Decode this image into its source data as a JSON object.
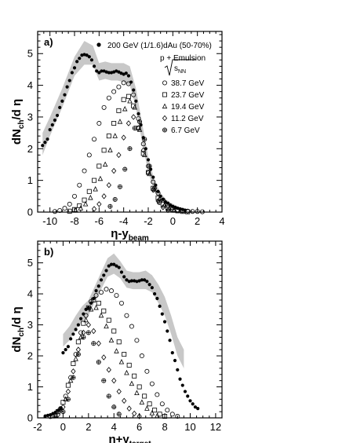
{
  "chart_data": [
    {
      "type": "scatter",
      "panel_label": "a)",
      "ylabel": "dN",
      "ylabel_sub": "ch",
      "ylabel_tail": "/d η",
      "xlabel": "η-y",
      "xlabel_sub": "beam",
      "xlim": [
        -11,
        4
      ],
      "ylim": [
        0,
        5.7
      ],
      "x_ticks": [
        "-10",
        "-8",
        "-6",
        "-4",
        "-2",
        "0",
        "2",
        "4"
      ],
      "y_ticks": [
        "0",
        "1",
        "2",
        "3",
        "4",
        "5"
      ],
      "legend": {
        "dau_label": "200 GeV (1/1.6)dAu (50-70%)",
        "emulsion_label": "p + Emulsion",
        "sqrt_label": "s",
        "sqrt_sub": "NN",
        "entries": [
          {
            "label": "38.7 GeV",
            "marker": "circle"
          },
          {
            "label": "23.7 GeV",
            "marker": "square"
          },
          {
            "label": "19.4 GeV",
            "marker": "triangle"
          },
          {
            "label": "11.2 GeV",
            "marker": "diamond"
          },
          {
            "label": "6.7 GeV",
            "marker": "cross-circle"
          }
        ]
      },
      "band": {
        "x": [
          -10.6,
          -10.0,
          -9.0,
          -8.0,
          -7.2,
          -6.5,
          -6.0,
          -5.5,
          -5.0,
          -4.5,
          -4.0,
          -3.5,
          -3.0,
          -2.5,
          -2.0,
          -1.5,
          -1.0,
          -0.5,
          0.0,
          0.5,
          1.0
        ],
        "lower": [
          1.8,
          2.4,
          3.3,
          4.3,
          4.65,
          4.65,
          4.15,
          4.2,
          4.15,
          4.15,
          4.1,
          4.0,
          3.3,
          2.2,
          1.25,
          0.65,
          0.35,
          0.22,
          0.14,
          0.09,
          0.06
        ],
        "upper": [
          2.5,
          3.0,
          3.9,
          4.9,
          5.4,
          5.25,
          4.7,
          4.75,
          4.7,
          4.7,
          4.7,
          4.6,
          3.9,
          2.8,
          1.75,
          1.0,
          0.6,
          0.38,
          0.26,
          0.16,
          0.11
        ]
      },
      "series": [
        {
          "marker": "dot",
          "x": [
            -10.6,
            -10.4,
            -10.2,
            -10.0,
            -9.8,
            -9.6,
            -9.4,
            -9.2,
            -9.0,
            -8.8,
            -8.6,
            -8.4,
            -8.2,
            -8.0,
            -7.8,
            -7.6,
            -7.4,
            -7.2,
            -7.0,
            -6.8,
            -6.6,
            -6.4,
            -6.2,
            -6.0,
            -5.8,
            -5.6,
            -5.4,
            -5.2,
            -5.0,
            -4.8,
            -4.6,
            -4.4,
            -4.2,
            -4.0,
            -3.8,
            -3.6,
            -3.4,
            -3.2,
            -3.0,
            -2.8,
            -2.6,
            -2.4,
            -2.2,
            -2.0,
            -1.8,
            -1.6,
            -1.4,
            -1.2,
            -1.0,
            -0.8,
            -0.6,
            -0.4,
            -0.2,
            0.0,
            0.2,
            0.4,
            0.6,
            0.8,
            1.0
          ],
          "y": [
            2.1,
            2.2,
            2.3,
            2.6,
            2.75,
            2.9,
            3.05,
            3.3,
            3.5,
            3.7,
            3.95,
            4.15,
            4.4,
            4.55,
            4.75,
            4.85,
            4.95,
            4.97,
            4.95,
            4.9,
            4.8,
            4.6,
            4.45,
            4.4,
            4.45,
            4.45,
            4.42,
            4.4,
            4.4,
            4.42,
            4.45,
            4.42,
            4.38,
            4.35,
            4.38,
            4.3,
            4.1,
            3.85,
            3.5,
            3.1,
            2.75,
            2.35,
            2.0,
            1.65,
            1.35,
            1.1,
            0.85,
            0.65,
            0.5,
            0.4,
            0.32,
            0.28,
            0.22,
            0.18,
            0.15,
            0.12,
            0.1,
            0.08,
            0.06
          ]
        },
        {
          "marker": "circle",
          "x": [
            -9.6,
            -9.2,
            -8.8,
            -8.4,
            -8.0,
            -7.6,
            -7.2,
            -6.8,
            -6.4,
            -6.0,
            -5.6,
            -5.2,
            -4.8,
            -4.4,
            -4.0,
            -3.6,
            -3.2,
            -2.8,
            -2.4,
            -2.0,
            -1.6,
            -1.2,
            -0.8,
            -0.4,
            0.0,
            0.4,
            0.8,
            1.2,
            1.6,
            2.0,
            2.4
          ],
          "y": [
            0.02,
            0.05,
            0.12,
            0.25,
            0.5,
            0.85,
            1.3,
            1.8,
            2.3,
            2.8,
            3.3,
            3.6,
            3.8,
            3.95,
            4.08,
            4.05,
            3.7,
            2.95,
            2.15,
            1.45,
            0.95,
            0.6,
            0.38,
            0.22,
            0.13,
            0.07,
            0.04,
            0.03,
            0.02,
            0.02,
            0.01
          ]
        },
        {
          "marker": "square",
          "x": [
            -8.4,
            -8.0,
            -7.6,
            -7.2,
            -6.8,
            -6.4,
            -6.0,
            -5.6,
            -5.2,
            -4.8,
            -4.4,
            -4.0,
            -3.6,
            -3.2,
            -2.8,
            -2.4,
            -2.0,
            -1.6,
            -1.2,
            -0.8,
            -0.4,
            0.0,
            0.4,
            0.8,
            1.2
          ],
          "y": [
            0.03,
            0.08,
            0.2,
            0.38,
            0.65,
            1.0,
            1.45,
            1.95,
            2.4,
            2.8,
            3.2,
            3.55,
            3.65,
            3.35,
            2.65,
            1.85,
            1.25,
            0.75,
            0.45,
            0.25,
            0.14,
            0.08,
            0.04,
            0.02,
            0.01
          ]
        },
        {
          "marker": "triangle",
          "x": [
            -7.9,
            -7.5,
            -7.1,
            -6.7,
            -6.3,
            -5.9,
            -5.5,
            -5.1,
            -4.7,
            -4.3,
            -3.9,
            -3.5,
            -3.1,
            -2.7,
            -2.3,
            -1.9,
            -1.5,
            -1.1,
            -0.7,
            -0.3,
            0.1
          ],
          "y": [
            0.05,
            0.12,
            0.25,
            0.45,
            0.72,
            1.05,
            1.5,
            1.95,
            2.4,
            2.85,
            3.25,
            3.5,
            3.3,
            2.6,
            1.8,
            1.2,
            0.7,
            0.4,
            0.2,
            0.1,
            0.05
          ]
        },
        {
          "marker": "diamond",
          "x": [
            -6.4,
            -6.0,
            -5.6,
            -5.2,
            -4.8,
            -4.4,
            -4.0,
            -3.6,
            -3.2,
            -2.8,
            -2.4,
            -2.0,
            -1.6,
            -1.2,
            -0.8,
            -0.4
          ],
          "y": [
            0.1,
            0.25,
            0.5,
            0.85,
            1.3,
            1.8,
            2.35,
            2.8,
            3.0,
            2.65,
            1.95,
            1.25,
            0.7,
            0.35,
            0.15,
            0.06
          ]
        },
        {
          "marker": "cross-circle",
          "x": [
            -5.1,
            -4.7,
            -4.3,
            -3.9,
            -3.5,
            -3.1,
            -2.7,
            -2.3,
            -1.9,
            -1.5,
            -1.1
          ],
          "y": [
            0.18,
            0.4,
            0.8,
            1.35,
            2.0,
            2.65,
            2.85,
            2.3,
            1.45,
            0.75,
            0.3
          ]
        }
      ]
    },
    {
      "type": "scatter",
      "panel_label": "b)",
      "ylabel": "dN",
      "ylabel_sub": "ch",
      "ylabel_tail": "/d η",
      "xlabel": "η+y",
      "xlabel_sub": "target",
      "xlim": [
        -2,
        12.5
      ],
      "ylim": [
        0,
        5.7
      ],
      "x_ticks": [
        "-2",
        "0",
        "2",
        "4",
        "6",
        "8",
        "10",
        "12"
      ],
      "y_ticks": [
        "0",
        "1",
        "2",
        "3",
        "4",
        "5"
      ],
      "band": {
        "x": [
          0.0,
          0.5,
          1.0,
          1.5,
          2.0,
          2.5,
          3.0,
          3.5,
          4.0,
          4.5,
          5.0,
          5.5,
          6.0,
          6.5,
          7.0,
          7.5,
          8.0,
          8.5,
          9.0,
          9.5
        ],
        "lower": [
          2.3,
          2.5,
          2.85,
          3.1,
          3.3,
          3.75,
          4.15,
          4.55,
          4.65,
          4.5,
          4.2,
          4.15,
          4.15,
          4.15,
          4.05,
          3.7,
          3.3,
          2.7,
          2.0,
          1.6
        ],
        "upper": [
          2.7,
          2.95,
          3.3,
          3.6,
          3.8,
          4.25,
          4.7,
          5.15,
          5.3,
          5.05,
          4.75,
          4.7,
          4.7,
          4.75,
          4.6,
          4.3,
          3.9,
          3.3,
          2.6,
          2.2
        ]
      },
      "series": [
        {
          "marker": "dot",
          "x": [
            -1.4,
            -1.2,
            -1.0,
            -0.8,
            -0.6,
            -0.4,
            -0.2,
            0.0,
            0.2,
            0.4,
            0.6,
            0.8,
            1.0,
            1.2,
            1.4,
            1.6,
            1.8,
            2.0,
            2.2,
            2.4,
            2.6,
            2.8,
            3.0,
            3.2,
            3.4,
            3.6,
            3.8,
            4.0,
            4.2,
            4.4,
            4.6,
            4.8,
            5.0,
            5.2,
            5.4,
            5.6,
            5.8,
            6.0,
            6.2,
            6.4,
            6.6,
            6.8,
            7.0,
            7.2,
            7.4,
            7.6,
            7.8,
            8.0,
            8.2,
            8.4,
            8.6,
            8.8,
            9.0,
            9.2,
            9.4,
            9.6,
            9.8,
            10.0,
            10.2,
            10.4,
            10.6
          ],
          "y": [
            0.06,
            0.08,
            0.1,
            0.14,
            0.18,
            0.24,
            0.3,
            2.1,
            2.2,
            2.3,
            2.55,
            2.7,
            2.85,
            3.0,
            3.2,
            3.35,
            3.5,
            3.55,
            3.7,
            3.85,
            4.1,
            4.25,
            4.45,
            4.6,
            4.75,
            4.9,
            4.95,
            4.95,
            4.9,
            4.85,
            4.7,
            4.55,
            4.45,
            4.4,
            4.42,
            4.42,
            4.4,
            4.42,
            4.45,
            4.45,
            4.4,
            4.3,
            4.2,
            4.0,
            3.85,
            3.6,
            3.35,
            3.1,
            2.8,
            2.5,
            2.1,
            1.85,
            1.55,
            1.25,
            1.05,
            0.85,
            0.7,
            0.55,
            0.45,
            0.35,
            0.3
          ]
        },
        {
          "marker": "circle",
          "x": [
            -1.0,
            -0.6,
            -0.2,
            0.2,
            0.6,
            1.0,
            1.4,
            1.8,
            2.2,
            2.6,
            3.0,
            3.4,
            3.8,
            4.2,
            4.6,
            5.0,
            5.4,
            5.8,
            6.2,
            6.6,
            7.0,
            7.4,
            7.8,
            8.2,
            8.6,
            9.0
          ],
          "y": [
            0.04,
            0.1,
            0.3,
            0.7,
            1.3,
            2.05,
            2.75,
            3.3,
            3.75,
            3.95,
            4.05,
            4.15,
            4.1,
            3.95,
            3.7,
            3.3,
            2.95,
            2.5,
            2.0,
            1.5,
            1.1,
            0.75,
            0.45,
            0.25,
            0.12,
            0.05
          ]
        },
        {
          "marker": "square",
          "x": [
            -0.8,
            -0.4,
            0.0,
            0.4,
            0.8,
            1.2,
            1.6,
            2.0,
            2.4,
            2.8,
            3.2,
            3.6,
            4.0,
            4.4,
            4.8,
            5.2,
            5.6,
            6.0,
            6.4,
            6.8,
            7.2,
            7.6,
            8.0
          ],
          "y": [
            0.06,
            0.2,
            0.5,
            1.05,
            1.75,
            2.45,
            3.05,
            3.55,
            3.8,
            3.7,
            3.45,
            3.15,
            2.8,
            2.45,
            2.05,
            1.7,
            1.35,
            1.0,
            0.7,
            0.45,
            0.25,
            0.12,
            0.05
          ]
        },
        {
          "marker": "triangle",
          "x": [
            -0.6,
            -0.2,
            0.2,
            0.6,
            1.0,
            1.4,
            1.8,
            2.2,
            2.6,
            3.0,
            3.4,
            3.8,
            4.2,
            4.6,
            5.0,
            5.4,
            5.8,
            6.2,
            6.6,
            7.0,
            7.4
          ],
          "y": [
            0.08,
            0.25,
            0.6,
            1.2,
            1.9,
            2.6,
            3.15,
            3.5,
            3.55,
            3.3,
            2.95,
            2.5,
            2.15,
            1.8,
            1.45,
            1.1,
            0.8,
            0.5,
            0.3,
            0.15,
            0.06
          ]
        },
        {
          "marker": "diamond",
          "x": [
            -0.4,
            0.0,
            0.4,
            0.8,
            1.2,
            1.6,
            2.0,
            2.4,
            2.8,
            3.2,
            3.6,
            4.0,
            4.4,
            4.8,
            5.2,
            5.6,
            6.0
          ],
          "y": [
            0.1,
            0.35,
            0.85,
            1.5,
            2.2,
            2.75,
            3.0,
            2.8,
            2.4,
            1.95,
            1.55,
            1.2,
            0.85,
            0.55,
            0.3,
            0.14,
            0.05
          ]
        },
        {
          "marker": "cross-circle",
          "x": [
            0.0,
            0.4,
            0.8,
            1.2,
            1.6,
            2.0,
            2.4,
            2.8,
            3.2,
            3.6,
            4.0,
            4.4
          ],
          "y": [
            0.2,
            0.6,
            1.3,
            2.05,
            2.6,
            2.75,
            2.4,
            1.8,
            1.2,
            0.7,
            0.35,
            0.12
          ]
        }
      ]
    }
  ]
}
